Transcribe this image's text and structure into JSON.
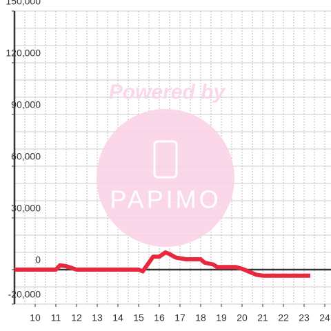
{
  "chart_data": {
    "type": "line",
    "x": [
      9,
      11,
      11.2,
      11.5,
      12,
      15,
      15.2,
      15.7,
      16,
      16.3,
      16.5,
      16.8,
      17.3,
      18,
      18.2,
      18.6,
      18.8,
      19.7,
      20,
      20.3,
      20.7,
      21,
      23.3
    ],
    "series": [
      {
        "color": "#e8283c",
        "values": [
          0,
          0,
          2500,
          2000,
          0,
          0,
          -1000,
          7500,
          7500,
          10000,
          9000,
          7000,
          6000,
          6000,
          4000,
          3000,
          1500,
          1500,
          500,
          -1000,
          -3000,
          -3500,
          -3500
        ]
      }
    ],
    "xlim": [
      9,
      24.3
    ],
    "xticks": [
      10,
      11,
      12,
      13,
      14,
      15,
      16,
      17,
      18,
      19,
      20,
      21,
      22,
      23,
      24
    ],
    "minor_xticks": [
      9.5,
      10.5,
      11.5,
      12.5,
      13.5,
      14.5,
      15.5,
      16.5,
      17.5,
      18.5,
      19.5,
      20.5,
      21.5,
      22.5,
      23.5
    ],
    "ylim": [
      -20000,
      150000
    ],
    "yticks": [
      {
        "value": -20000,
        "label": "-20,000"
      },
      0,
      {
        "value": 30000,
        "label": "30,000"
      },
      {
        "value": 60000,
        "label": "60,000"
      },
      {
        "value": 90000,
        "label": "90,000"
      },
      {
        "value": 120000,
        "label": "120,000"
      },
      {
        "value": 150000,
        "label": "150,000"
      }
    ],
    "minor_yticks": [
      -10000,
      10000,
      20000,
      40000,
      50000,
      70000,
      80000,
      100000,
      110000,
      130000,
      140000
    ],
    "grid": true
  },
  "watermark": {
    "text": "Powered by",
    "logo": "PAPIMO"
  }
}
